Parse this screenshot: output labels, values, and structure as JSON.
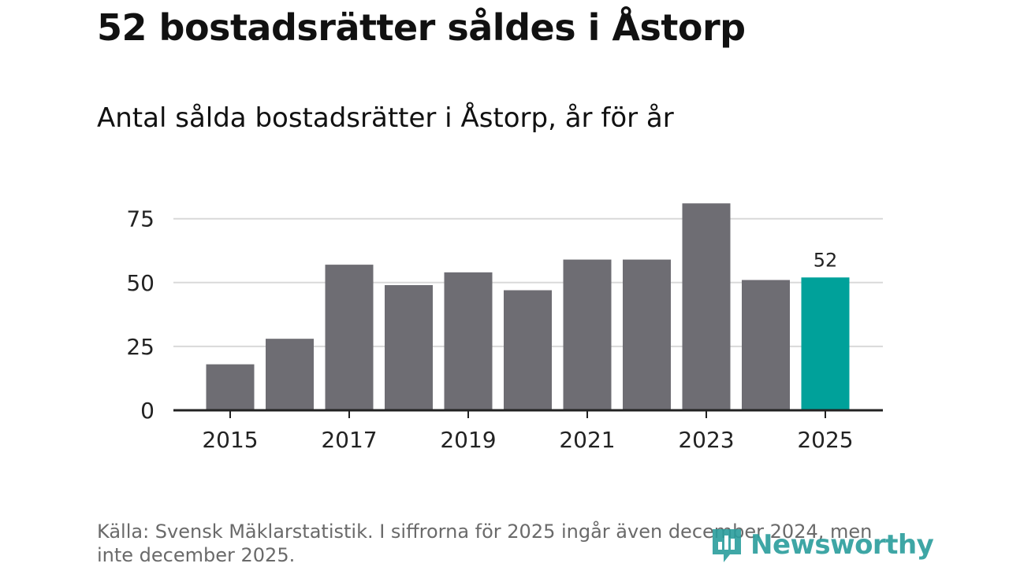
{
  "header": {
    "title": "52 bostadsrätter såldes i Åstorp",
    "subtitle": "Antal sålda bostadsrätter i Åstorp, år för år"
  },
  "footer": {
    "source": "Källa: Svensk Mäklarstatistik. I siffrorna för 2025 ingår även december 2024, men inte december 2025.",
    "logo_text": "Newsworthy"
  },
  "colors": {
    "bar": "#6e6d73",
    "highlight": "#00a19a",
    "grid": "#d9d9d9",
    "axis": "#222222",
    "brand": "#2a9d9c"
  },
  "chart_data": {
    "type": "bar",
    "title": "Antal sålda bostadsrätter i Åstorp, år för år",
    "xlabel": "",
    "ylabel": "",
    "categories": [
      "2015",
      "2016",
      "2017",
      "2018",
      "2019",
      "2020",
      "2021",
      "2022",
      "2023",
      "2024",
      "2025"
    ],
    "values": [
      18,
      28,
      57,
      49,
      54,
      47,
      59,
      59,
      81,
      51,
      52
    ],
    "highlight_index": 10,
    "data_labels": [
      {
        "index": 10,
        "text": "52"
      }
    ],
    "x_tick_labels": [
      "2015",
      "2017",
      "2019",
      "2021",
      "2023",
      "2025"
    ],
    "y_ticks": [
      0,
      25,
      50,
      75
    ],
    "ylim": [
      0,
      82
    ],
    "grid": true
  }
}
